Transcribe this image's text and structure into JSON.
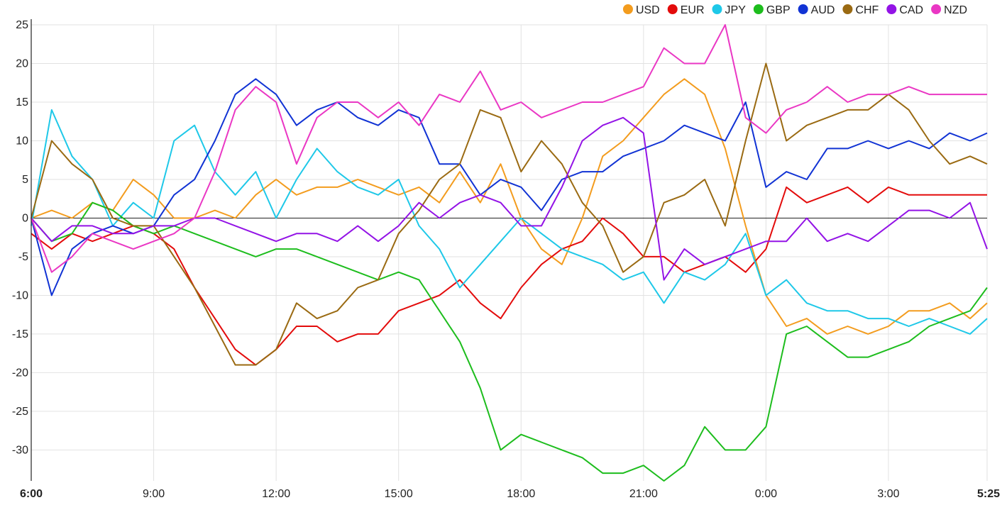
{
  "chart_data": {
    "type": "line",
    "title": "",
    "xlabel": "",
    "ylabel": "",
    "ylim": [
      -34,
      25
    ],
    "yticks": [
      25,
      20,
      15,
      10,
      5,
      0,
      -5,
      -10,
      -15,
      -20,
      -25,
      -30
    ],
    "xlim": [
      "6:00",
      "5:25"
    ],
    "xticks": [
      "6:00",
      "9:00",
      "12:00",
      "15:00",
      "18:00",
      "21:00",
      "0:00",
      "3:00",
      "5:25"
    ],
    "xtick_hours": [
      0,
      3,
      6,
      9,
      12,
      15,
      18,
      21,
      23.4167
    ],
    "xtick_bold": [
      true,
      false,
      false,
      false,
      false,
      false,
      false,
      false,
      true
    ],
    "grid": true,
    "zero_line": true,
    "legend_position": "top-right",
    "x_hours": [
      0,
      0.5,
      1,
      1.5,
      2,
      2.5,
      3,
      3.5,
      4,
      4.5,
      5,
      5.5,
      6,
      6.5,
      7,
      7.5,
      8,
      8.5,
      9,
      9.5,
      10,
      10.5,
      11,
      11.5,
      12,
      12.5,
      13,
      13.5,
      14,
      14.5,
      15,
      15.5,
      16,
      16.5,
      17,
      17.5,
      18,
      18.5,
      19,
      19.5,
      20,
      20.5,
      21,
      21.5,
      22,
      22.5,
      23,
      23.4167
    ],
    "series": [
      {
        "name": "USD",
        "color": "#f39c1e",
        "values": [
          0,
          1,
          0,
          2,
          1,
          5,
          3,
          0,
          0,
          1,
          0,
          3,
          5,
          3,
          4,
          4,
          5,
          4,
          3,
          4,
          2,
          6,
          2,
          7,
          0,
          -4,
          -6,
          0,
          8,
          10,
          13,
          16,
          18,
          16,
          9,
          -1,
          -10,
          -14,
          -13,
          -15,
          -14,
          -15,
          -14,
          -12,
          -12,
          -11,
          -13,
          -11
        ]
      },
      {
        "name": "EUR",
        "color": "#e30b0b",
        "values": [
          -2,
          -4,
          -2,
          -3,
          -2,
          -1,
          -2,
          -4,
          -9,
          -13,
          -17,
          -19,
          -17,
          -14,
          -14,
          -16,
          -15,
          -15,
          -12,
          -11,
          -10,
          -8,
          -11,
          -13,
          -9,
          -6,
          -4,
          -3,
          0,
          -2,
          -5,
          -5,
          -7,
          -6,
          -5,
          -7,
          -4,
          4,
          2,
          3,
          4,
          2,
          4,
          3,
          3,
          3,
          3,
          3
        ]
      },
      {
        "name": "JPY",
        "color": "#1ec8e8",
        "values": [
          -1,
          14,
          8,
          5,
          -1,
          2,
          0,
          10,
          12,
          6,
          3,
          6,
          0,
          5,
          9,
          6,
          4,
          3,
          5,
          -1,
          -4,
          -9,
          -6,
          -3,
          0,
          -2,
          -4,
          -5,
          -6,
          -8,
          -7,
          -11,
          -7,
          -8,
          -6,
          -2,
          -10,
          -8,
          -11,
          -12,
          -12,
          -13,
          -13,
          -14,
          -13,
          -14,
          -15,
          -13
        ]
      },
      {
        "name": "GBP",
        "color": "#1dbd1d",
        "values": [
          0,
          -3,
          -2,
          2,
          1,
          -1,
          -2,
          -1,
          -2,
          -3,
          -4,
          -5,
          -4,
          -4,
          -5,
          -6,
          -7,
          -8,
          -7,
          -8,
          -12,
          -16,
          -22,
          -30,
          -28,
          -29,
          -30,
          -31,
          -33,
          -33,
          -32,
          -34,
          -32,
          -27,
          -30,
          -30,
          -27,
          -15,
          -14,
          -16,
          -18,
          -18,
          -17,
          -16,
          -14,
          -13,
          -12,
          -9
        ]
      },
      {
        "name": "AUD",
        "color": "#1133d4",
        "values": [
          0,
          -10,
          -4,
          -2,
          -1,
          -2,
          -1,
          3,
          5,
          10,
          16,
          18,
          16,
          12,
          14,
          15,
          13,
          12,
          14,
          13,
          7,
          7,
          3,
          5,
          4,
          1,
          5,
          6,
          6,
          8,
          9,
          10,
          12,
          11,
          10,
          15,
          4,
          6,
          5,
          9,
          9,
          10,
          9,
          10,
          9,
          11,
          10,
          11
        ]
      },
      {
        "name": "CHF",
        "color": "#9a6a12",
        "values": [
          0,
          10,
          7,
          5,
          0,
          -1,
          -1,
          -5,
          -9,
          -14,
          -19,
          -19,
          -17,
          -11,
          -13,
          -12,
          -9,
          -8,
          -2,
          1,
          5,
          7,
          14,
          13,
          6,
          10,
          7,
          2,
          -1,
          -7,
          -5,
          2,
          3,
          5,
          -1,
          10,
          20,
          10,
          12,
          13,
          14,
          14,
          16,
          14,
          10,
          7,
          8,
          7
        ]
      },
      {
        "name": "CAD",
        "color": "#9313e6",
        "values": [
          0,
          -3,
          -1,
          -1,
          -2,
          -2,
          -1,
          -1,
          0,
          0,
          -1,
          -2,
          -3,
          -2,
          -2,
          -3,
          -1,
          -3,
          -1,
          2,
          0,
          2,
          3,
          2,
          -1,
          -1,
          4,
          10,
          12,
          13,
          11,
          -8,
          -4,
          -6,
          -5,
          -4,
          -3,
          -3,
          0,
          -3,
          -2,
          -3,
          -1,
          1,
          1,
          0,
          2,
          -4
        ]
      },
      {
        "name": "NZD",
        "color": "#ea37c4",
        "values": [
          0,
          -7,
          -5,
          -2,
          -3,
          -4,
          -3,
          -2,
          0,
          6,
          14,
          17,
          15,
          7,
          13,
          15,
          15,
          13,
          15,
          12,
          16,
          15,
          19,
          14,
          15,
          13,
          14,
          15,
          15,
          16,
          17,
          22,
          20,
          20,
          25,
          13,
          11,
          14,
          15,
          17,
          15,
          16,
          16,
          17,
          16,
          16,
          16,
          16
        ]
      }
    ]
  }
}
